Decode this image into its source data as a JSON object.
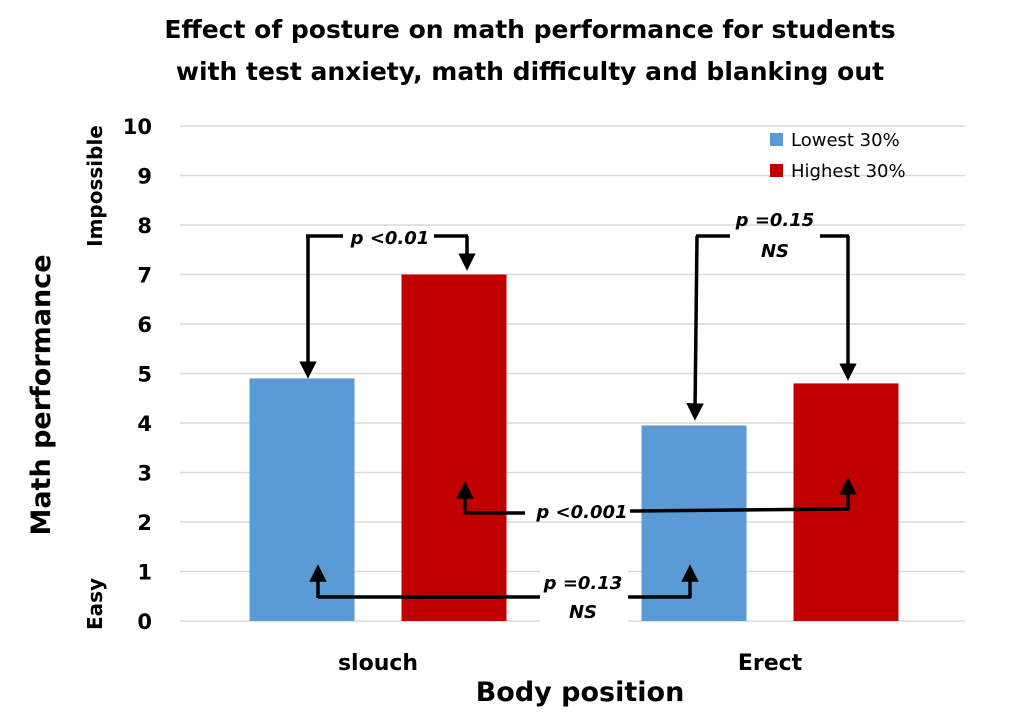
{
  "chart_data": {
    "type": "bar",
    "title": "Effect of posture on math performance for students with test anxiety, math difficulty and blanking out",
    "title_lines": [
      "Effect of posture on math performance for students",
      "with test anxiety, math difficulty and blanking out"
    ],
    "xlabel": "Body position",
    "ylabel": "Math performance",
    "y_scale_labels": {
      "top": "Impossible",
      "bottom": "Easy"
    },
    "categories": [
      "slouch",
      "Erect"
    ],
    "series": [
      {
        "name": "Lowest 30%",
        "color": "#5B9BD5",
        "values": [
          4.9,
          3.95
        ]
      },
      {
        "name": "Highest 30%",
        "color": "#C00000",
        "values": [
          7.0,
          4.8
        ]
      }
    ],
    "ylim": [
      0,
      10
    ],
    "yticks": [
      "0",
      "1",
      "2",
      "3",
      "4",
      "5",
      "6",
      "7",
      "8",
      "9",
      "10"
    ],
    "grid": true,
    "legend_position": "top-right",
    "annotations": [
      {
        "compare": "slouch Lowest vs slouch Highest",
        "text": "p <0.01",
        "sub": ""
      },
      {
        "compare": "Erect Lowest vs Erect Highest",
        "text": "p =0.15",
        "sub": "NS"
      },
      {
        "compare": "slouch Highest vs Erect Highest",
        "text": "p <0.001",
        "sub": ""
      },
      {
        "compare": "slouch Lowest vs Erect Lowest",
        "text": "p =0.13",
        "sub": "NS"
      }
    ]
  }
}
